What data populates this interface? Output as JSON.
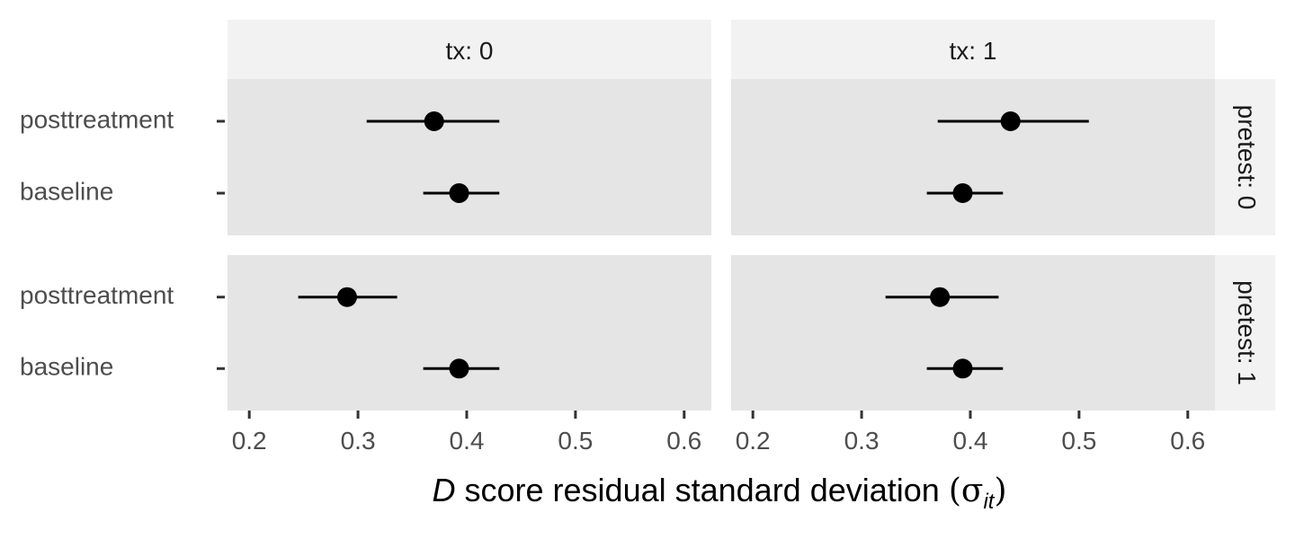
{
  "chart_data": {
    "type": "scatter",
    "subtype": "dot-and-whisker (faceted grid)",
    "facet_cols": {
      "variable": "tx",
      "levels": [
        "tx: 0",
        "tx: 1"
      ]
    },
    "facet_rows": {
      "variable": "pretest",
      "levels": [
        "pretest: 0",
        "pretest: 1"
      ]
    },
    "categories": [
      "posttreatment",
      "baseline"
    ],
    "xlim": [
      0.18,
      0.625
    ],
    "xticks": [
      0.2,
      0.3,
      0.4,
      0.5,
      0.6
    ],
    "xtick_labels": [
      "0.2",
      "0.3",
      "0.4",
      "0.5",
      "0.6"
    ],
    "xlabel": {
      "italic": "D",
      "text": " score residual standard deviation ",
      "symbol": "σ",
      "subscript": "it"
    },
    "panels": [
      {
        "col": "tx: 0",
        "row": "pretest: 0",
        "points": [
          {
            "category": "posttreatment",
            "estimate": 0.37,
            "lower": 0.308,
            "upper": 0.43
          },
          {
            "category": "baseline",
            "estimate": 0.393,
            "lower": 0.36,
            "upper": 0.43
          }
        ]
      },
      {
        "col": "tx: 1",
        "row": "pretest: 0",
        "points": [
          {
            "category": "posttreatment",
            "estimate": 0.437,
            "lower": 0.37,
            "upper": 0.509
          },
          {
            "category": "baseline",
            "estimate": 0.393,
            "lower": 0.36,
            "upper": 0.43
          }
        ]
      },
      {
        "col": "tx: 0",
        "row": "pretest: 1",
        "points": [
          {
            "category": "posttreatment",
            "estimate": 0.29,
            "lower": 0.245,
            "upper": 0.336
          },
          {
            "category": "baseline",
            "estimate": 0.393,
            "lower": 0.36,
            "upper": 0.43
          }
        ]
      },
      {
        "col": "tx: 1",
        "row": "pretest: 1",
        "points": [
          {
            "category": "posttreatment",
            "estimate": 0.372,
            "lower": 0.322,
            "upper": 0.426
          },
          {
            "category": "baseline",
            "estimate": 0.393,
            "lower": 0.36,
            "upper": 0.43
          }
        ]
      }
    ],
    "colors": {
      "panel_background": "#e5e5e5",
      "strip_background": "#f2f2f2",
      "point": "#000000",
      "tick": "#333333"
    },
    "grid": false,
    "legend": "none"
  }
}
